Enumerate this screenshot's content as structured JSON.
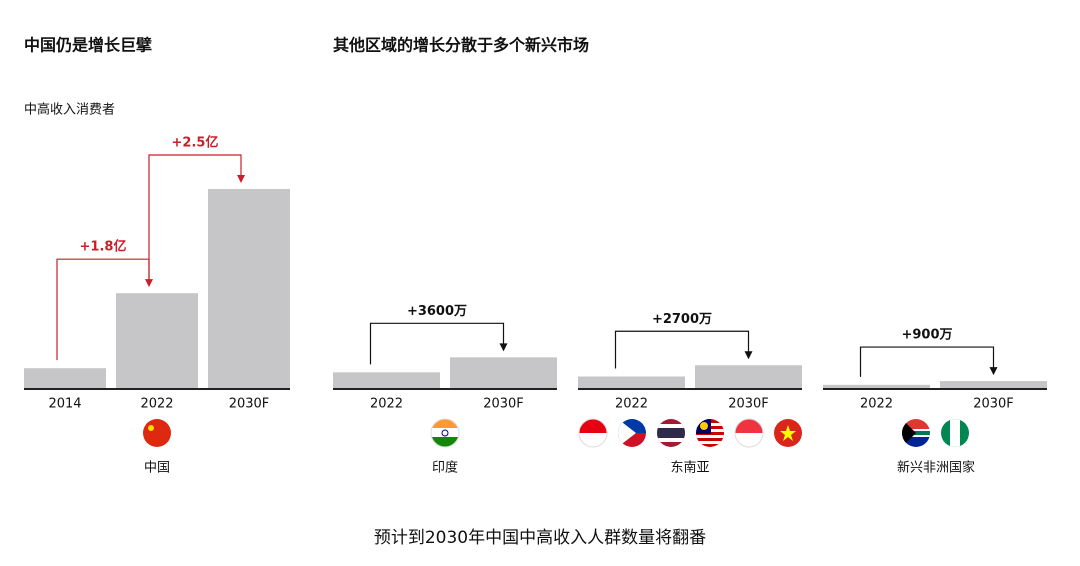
{
  "heading_left": "中国仍是增长巨擘",
  "heading_right": "其他区域的增长分散于多个新兴市场",
  "subtitle": "中高收入消费者",
  "footer": "预计到2030年中国中高收入人群数量将翻番",
  "chart_data": [
    {
      "type": "bar",
      "region": "中国",
      "categories": [
        "2014",
        "2022",
        "2030F"
      ],
      "values": [
        5000,
        23000,
        48000
      ],
      "color": "#c6c6c8",
      "annotations": [
        "+1.8亿",
        "+2.5亿"
      ],
      "annotation_color": "#c8202a"
    },
    {
      "type": "bar",
      "region": "印度",
      "categories": [
        "2022",
        "2030F"
      ],
      "values": [
        4000,
        7600
      ],
      "color": "#c6c6c8",
      "annotations": [
        "+3600万"
      ],
      "annotation_color": "#111111"
    },
    {
      "type": "bar",
      "region": "东南亚",
      "categories": [
        "2022",
        "2030F"
      ],
      "values": [
        3000,
        5700
      ],
      "color": "#c6c6c8",
      "annotations": [
        "+2700万"
      ],
      "annotation_color": "#111111"
    },
    {
      "type": "bar",
      "region": "新兴非洲国家",
      "categories": [
        "2022",
        "2030F"
      ],
      "values": [
        1000,
        1900
      ],
      "color": "#c6c6c8",
      "annotations": [
        "+900万"
      ],
      "annotation_color": "#111111"
    }
  ]
}
